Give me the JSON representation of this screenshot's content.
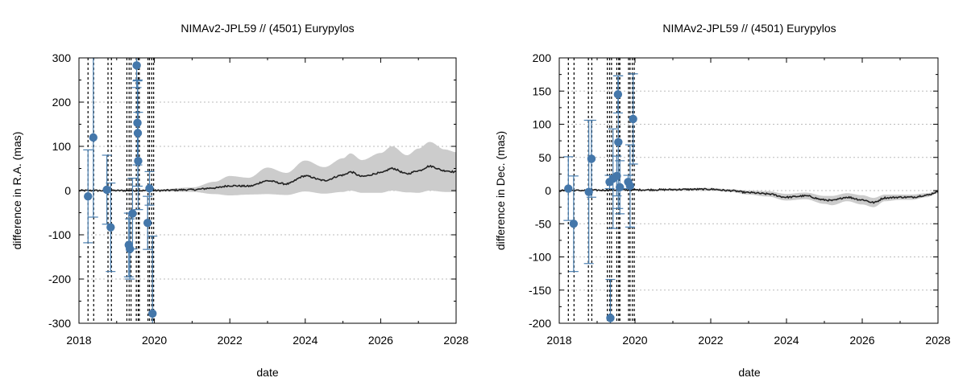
{
  "chart_data": [
    {
      "type": "scatter",
      "title": "NIMAv2-JPL59 // (4501) Eurypylos",
      "xlabel": "date",
      "ylabel": "difference in R.A. (mas)",
      "xlim": [
        2018,
        2028
      ],
      "ylim": [
        -300,
        300
      ],
      "xticks": [
        "2018",
        "2020",
        "2022",
        "2024",
        "2026",
        "2028"
      ],
      "yticks": [
        "-300",
        "-200",
        "-100",
        "0",
        "100",
        "200",
        "300"
      ],
      "grid": true,
      "colors": {
        "points": "#4477aa",
        "band": "#cccccc",
        "line": "#222222",
        "vlines": "#000000"
      },
      "observation_dates": [
        2018.24,
        2018.39,
        2018.77,
        2018.86,
        2019.27,
        2019.33,
        2019.38,
        2019.52,
        2019.57,
        2019.6,
        2019.83,
        2019.87,
        2019.93,
        2019.98
      ],
      "observations": [
        {
          "x": 2018.24,
          "y": -13,
          "err": 105
        },
        {
          "x": 2018.38,
          "y": 120,
          "err": 180
        },
        {
          "x": 2018.74,
          "y": 2,
          "err": 78
        },
        {
          "x": 2018.84,
          "y": -83,
          "err": 100
        },
        {
          "x": 2019.32,
          "y": -123,
          "err": 72
        },
        {
          "x": 2019.35,
          "y": -132,
          "err": 68
        },
        {
          "x": 2019.42,
          "y": -52,
          "err": 80
        },
        {
          "x": 2019.53,
          "y": 283,
          "err": 50
        },
        {
          "x": 2019.55,
          "y": 153,
          "err": 95
        },
        {
          "x": 2019.56,
          "y": 130,
          "err": 120
        },
        {
          "x": 2019.57,
          "y": 67,
          "err": 110
        },
        {
          "x": 2019.82,
          "y": -73,
          "err": 60
        },
        {
          "x": 2019.87,
          "y": 5,
          "err": 38
        },
        {
          "x": 2019.95,
          "y": -278,
          "err": 175
        }
      ],
      "trend": {
        "x": [
          2018,
          2020,
          2021,
          2021.6,
          2022,
          2022.5,
          2023,
          2023.5,
          2024,
          2024.5,
          2025,
          2025.2,
          2025.5,
          2026,
          2026.3,
          2026.7,
          2027,
          2027.3,
          2027.7,
          2028
        ],
        "y": [
          0,
          0,
          2,
          6,
          11,
          10,
          22,
          15,
          33,
          23,
          35,
          42,
          32,
          40,
          50,
          38,
          45,
          55,
          45,
          42
        ],
        "band": [
          0,
          2,
          5,
          14,
          22,
          19,
          30,
          25,
          35,
          30,
          38,
          42,
          37,
          45,
          50,
          42,
          50,
          55,
          48,
          45
        ]
      }
    },
    {
      "type": "scatter",
      "title": "NIMAv2-JPL59 // (4501) Eurypylos",
      "xlabel": "date",
      "ylabel": "difference in Dec. (mas)",
      "xlim": [
        2018,
        2028
      ],
      "ylim": [
        -200,
        200
      ],
      "xticks": [
        "2018",
        "2020",
        "2022",
        "2024",
        "2026",
        "2028"
      ],
      "yticks": [
        "-200",
        "-150",
        "-100",
        "-50",
        "0",
        "50",
        "100",
        "150",
        "200"
      ],
      "grid": true,
      "colors": {
        "points": "#4477aa",
        "band": "#cccccc",
        "line": "#222222",
        "vlines": "#000000"
      },
      "observation_dates": [
        2018.24,
        2018.39,
        2018.77,
        2018.86,
        2019.27,
        2019.33,
        2019.38,
        2019.52,
        2019.57,
        2019.6,
        2019.83,
        2019.87,
        2019.93,
        2019.98
      ],
      "observations": [
        {
          "x": 2018.24,
          "y": 3,
          "err": 48
        },
        {
          "x": 2018.38,
          "y": -50,
          "err": 72
        },
        {
          "x": 2018.78,
          "y": -2,
          "err": 108
        },
        {
          "x": 2018.85,
          "y": 48,
          "err": 58
        },
        {
          "x": 2019.33,
          "y": 13,
          "err": 10
        },
        {
          "x": 2019.35,
          "y": -192,
          "err": 58
        },
        {
          "x": 2019.42,
          "y": 18,
          "err": 75
        },
        {
          "x": 2019.52,
          "y": 22,
          "err": 30
        },
        {
          "x": 2019.55,
          "y": 145,
          "err": 28
        },
        {
          "x": 2019.56,
          "y": 73,
          "err": 100
        },
        {
          "x": 2019.6,
          "y": 5,
          "err": 40
        },
        {
          "x": 2019.82,
          "y": 13,
          "err": 10
        },
        {
          "x": 2019.87,
          "y": 7,
          "err": 62
        },
        {
          "x": 2019.95,
          "y": 108,
          "err": 68
        }
      ],
      "trend": {
        "x": [
          2018,
          2020,
          2022,
          2022.5,
          2023,
          2023.5,
          2024,
          2024.5,
          2025,
          2025.2,
          2025.6,
          2026,
          2026.3,
          2026.6,
          2027,
          2027.3,
          2027.7,
          2028
        ],
        "y": [
          0,
          1,
          2,
          0,
          -3,
          -5,
          -10,
          -8,
          -14,
          -15,
          -10,
          -14,
          -18,
          -11,
          -10,
          -10,
          -7,
          -2
        ],
        "band": [
          0,
          1,
          2,
          2,
          3,
          4,
          5,
          5,
          6,
          7,
          6,
          7,
          7,
          5,
          4,
          4,
          3,
          2
        ]
      }
    }
  ]
}
